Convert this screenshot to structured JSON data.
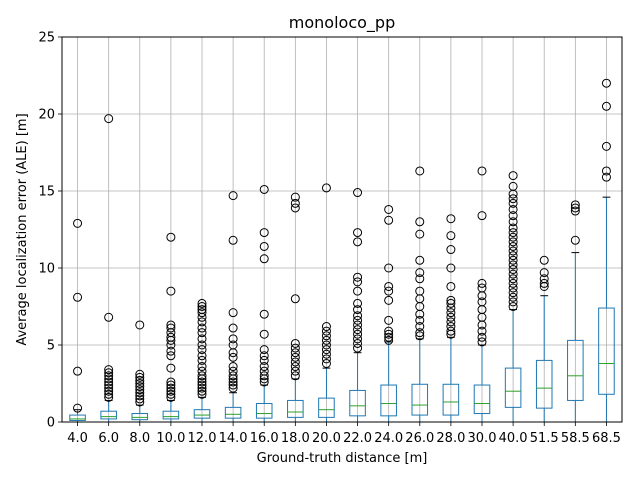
{
  "chart_data": {
    "type": "box",
    "title": "monoloco_pp",
    "xlabel": "Ground-truth distance [m]",
    "ylabel": "Average localization error (ALE) [m]",
    "ylim": [
      0,
      25
    ],
    "yticks": [
      0,
      5,
      10,
      15,
      20,
      25
    ],
    "grid": true,
    "box_color": "#1f77b4",
    "median_color": "#2ca02c",
    "categories": [
      "4.0",
      "6.0",
      "8.0",
      "10.0",
      "12.0",
      "14.0",
      "16.0",
      "18.0",
      "20.0",
      "22.0",
      "24.0",
      "26.0",
      "28.0",
      "30.0",
      "40.0",
      "51.5",
      "58.5",
      "68.5"
    ],
    "boxes": [
      {
        "q1": 0.1,
        "median": 0.2,
        "q3": 0.45,
        "whislo": 0.0,
        "whishi": 0.8,
        "fliers": [
          0.9,
          3.3,
          8.1,
          12.9
        ]
      },
      {
        "q1": 0.2,
        "median": 0.35,
        "q3": 0.7,
        "whislo": 0.0,
        "whishi": 1.4,
        "fliers": [
          1.6,
          1.8,
          2.0,
          2.2,
          2.4,
          2.6,
          2.8,
          3.0,
          3.2,
          3.4,
          6.8,
          19.7
        ]
      },
      {
        "q1": 0.15,
        "median": 0.3,
        "q3": 0.55,
        "whislo": 0.0,
        "whishi": 1.1,
        "fliers": [
          1.3,
          1.5,
          1.7,
          1.9,
          2.1,
          2.3,
          2.5,
          2.7,
          2.9,
          3.1,
          6.3
        ]
      },
      {
        "q1": 0.2,
        "median": 0.35,
        "q3": 0.7,
        "whislo": 0.0,
        "whishi": 1.4,
        "fliers": [
          1.6,
          1.8,
          2.0,
          2.2,
          2.4,
          2.6,
          3.5,
          4.3,
          4.6,
          5.0,
          5.3,
          5.5,
          5.8,
          6.1,
          6.3,
          8.5,
          12.0
        ]
      },
      {
        "q1": 0.25,
        "median": 0.45,
        "q3": 0.8,
        "whislo": 0.0,
        "whishi": 1.6,
        "fliers": [
          1.8,
          2.0,
          2.2,
          2.4,
          2.6,
          2.8,
          3.0,
          3.3,
          3.6,
          4.0,
          4.3,
          4.7,
          5.0,
          5.4,
          5.8,
          6.1,
          6.5,
          6.8,
          7.1,
          7.3,
          7.5,
          7.7
        ]
      },
      {
        "q1": 0.25,
        "median": 0.5,
        "q3": 0.95,
        "whislo": 0.0,
        "whishi": 1.9,
        "fliers": [
          2.2,
          2.4,
          2.6,
          2.8,
          3.0,
          3.3,
          3.6,
          4.2,
          4.5,
          5.0,
          5.4,
          6.1,
          7.1,
          11.8,
          14.7
        ]
      },
      {
        "q1": 0.25,
        "median": 0.55,
        "q3": 1.2,
        "whislo": 0.0,
        "whishi": 2.4,
        "fliers": [
          2.6,
          2.8,
          3.0,
          3.3,
          3.6,
          4.0,
          4.3,
          4.7,
          5.7,
          7.0,
          10.6,
          11.4,
          12.3,
          15.1
        ]
      },
      {
        "q1": 0.3,
        "median": 0.65,
        "q3": 1.4,
        "whislo": 0.0,
        "whishi": 2.8,
        "fliers": [
          3.0,
          3.3,
          3.6,
          3.9,
          4.2,
          4.5,
          4.8,
          5.1,
          8.0,
          13.9,
          14.2,
          14.6
        ]
      },
      {
        "q1": 0.3,
        "median": 0.8,
        "q3": 1.55,
        "whislo": 0.0,
        "whishi": 3.5,
        "fliers": [
          3.8,
          4.1,
          4.4,
          4.7,
          5.0,
          5.3,
          5.6,
          5.9,
          6.2,
          15.2
        ]
      },
      {
        "q1": 0.4,
        "median": 1.05,
        "q3": 2.05,
        "whislo": 0.0,
        "whishi": 4.5,
        "fliers": [
          4.8,
          5.1,
          5.4,
          5.7,
          6.0,
          6.3,
          6.6,
          6.9,
          7.3,
          7.7,
          8.5,
          9.1,
          9.4,
          11.7,
          12.3,
          14.9
        ]
      },
      {
        "q1": 0.4,
        "median": 1.2,
        "q3": 2.4,
        "whislo": 0.0,
        "whishi": 5.2,
        "fliers": [
          5.3,
          5.5,
          5.7,
          5.9,
          6.6,
          7.9,
          8.5,
          8.8,
          10.0,
          13.1,
          13.8
        ]
      },
      {
        "q1": 0.45,
        "median": 1.1,
        "q3": 2.45,
        "whislo": 0.0,
        "whishi": 5.4,
        "fliers": [
          5.6,
          5.8,
          6.2,
          6.6,
          7.0,
          7.5,
          8.0,
          8.5,
          9.3,
          9.7,
          10.5,
          12.2,
          13.0,
          16.3
        ]
      },
      {
        "q1": 0.45,
        "median": 1.3,
        "q3": 2.45,
        "whislo": 0.0,
        "whishi": 5.5,
        "fliers": [
          5.7,
          5.9,
          6.2,
          6.5,
          6.8,
          7.1,
          7.4,
          7.7,
          7.9,
          8.8,
          10.0,
          11.2,
          12.1,
          13.2
        ]
      },
      {
        "q1": 0.55,
        "median": 1.2,
        "q3": 2.4,
        "whislo": 0.0,
        "whishi": 5.0,
        "fliers": [
          5.2,
          5.5,
          5.9,
          6.3,
          6.8,
          7.3,
          7.8,
          8.2,
          8.7,
          9.0,
          13.4,
          16.3
        ]
      },
      {
        "q1": 0.95,
        "median": 2.0,
        "q3": 3.5,
        "whislo": 0.0,
        "whishi": 7.3,
        "fliers": [
          7.5,
          7.8,
          8.1,
          8.4,
          8.7,
          9.0,
          9.3,
          9.6,
          9.9,
          10.2,
          10.5,
          10.8,
          11.1,
          11.4,
          11.7,
          12.0,
          12.3,
          12.6,
          13.0,
          13.4,
          13.8,
          14.2,
          14.5,
          14.8,
          15.3,
          16.0
        ]
      },
      {
        "q1": 0.9,
        "median": 2.2,
        "q3": 4.0,
        "whislo": 0.0,
        "whishi": 8.2,
        "fliers": [
          8.8,
          9.0,
          9.3,
          9.7,
          10.5
        ]
      },
      {
        "q1": 1.4,
        "median": 3.0,
        "q3": 5.3,
        "whislo": 0.0,
        "whishi": 11.0,
        "fliers": [
          11.8,
          13.7,
          13.9,
          14.1
        ]
      },
      {
        "q1": 1.8,
        "median": 3.8,
        "q3": 7.4,
        "whislo": 0.0,
        "whishi": 14.6,
        "fliers": [
          15.9,
          16.3,
          17.9,
          20.5,
          22.0
        ]
      }
    ]
  }
}
